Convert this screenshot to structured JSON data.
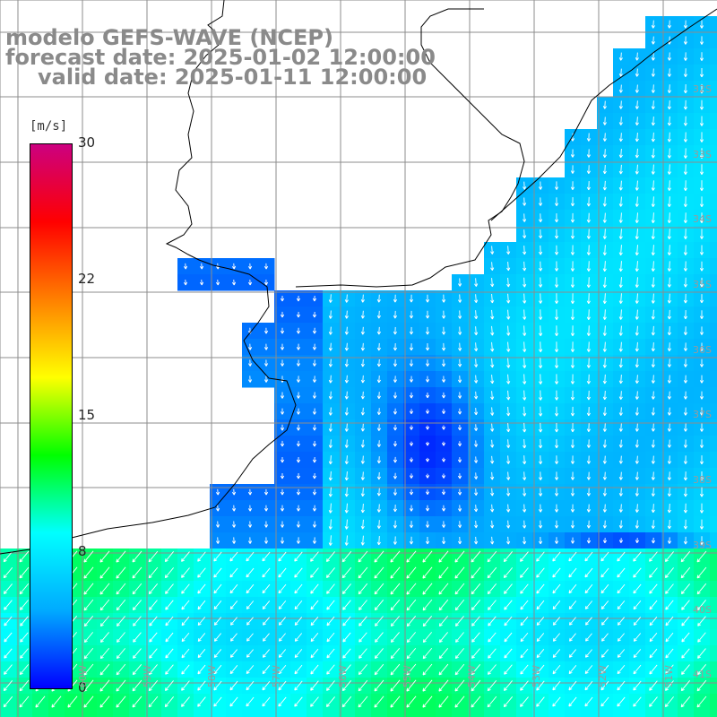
{
  "title": {
    "model": "modelo GEFS-WAVE (NCEP)",
    "forecast": "forecast date: 2025-01-02 12:00:00",
    "valid": "valid date: 2025-01-11 12:00:00"
  },
  "colorbar": {
    "unit": "[m/s]",
    "min": 0,
    "max": 30,
    "ticks": [
      "30",
      "22",
      "15",
      "8",
      "0"
    ],
    "tick_values": [
      30,
      22,
      15,
      8,
      0
    ],
    "colors": [
      "#0000ff",
      "#00aaff",
      "#00ffff",
      "#00ff00",
      "#ffff00",
      "#ff8000",
      "#ff0000",
      "#cc0080"
    ]
  },
  "map": {
    "variable": "wind speed and direction",
    "land_color": "#ffffff",
    "grid_color": "#8c8c8c",
    "lat_labels": [
      "32S",
      "33S",
      "34S",
      "35S",
      "36S",
      "37S",
      "38S",
      "39S",
      "40S",
      "41S"
    ],
    "lon_labels": [
      "60W",
      "59W",
      "58W",
      "57W",
      "56W",
      "55W",
      "54W",
      "53W",
      "52W",
      "51W"
    ]
  },
  "scene": {
    "prevailing_direction": "south",
    "south_band_direction": "southwest",
    "calm_pocket_speed": 1,
    "coastal_speed": 3,
    "offshore_speed": 6,
    "south_band_speed": 9
  }
}
